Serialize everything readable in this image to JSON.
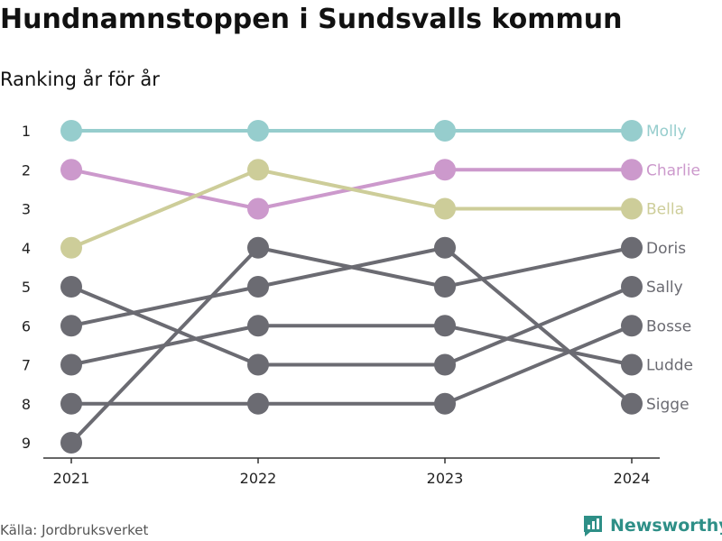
{
  "title": "Hundnamnstoppen i Sundsvalls kommun",
  "subtitle": "Ranking år för år",
  "source": "Källa: Jordbruksverket",
  "brand": "Newsworthy",
  "colors": {
    "Molly": "#96cdcd",
    "Charlie": "#cc99cc",
    "Bella": "#cdcd99",
    "other": "#6b6b72",
    "axis": "#333333",
    "brand": "#2e8f87"
  },
  "chart_data": {
    "type": "line",
    "x": [
      "2021",
      "2022",
      "2023",
      "2024"
    ],
    "y_ticks": [
      "1",
      "2",
      "3",
      "4",
      "5",
      "6",
      "7",
      "8",
      "9"
    ],
    "ylim": [
      1,
      9
    ],
    "y_reversed": true,
    "grid": false,
    "series": [
      {
        "name": "Molly",
        "values": [
          1,
          1,
          1,
          1
        ]
      },
      {
        "name": "Charlie",
        "values": [
          2,
          3,
          2,
          2
        ]
      },
      {
        "name": "Bella",
        "values": [
          4,
          2,
          3,
          3
        ]
      },
      {
        "name": "Doris",
        "values": [
          9,
          4,
          5,
          4
        ]
      },
      {
        "name": "Sally",
        "values": [
          5,
          7,
          7,
          5
        ]
      },
      {
        "name": "Bosse",
        "values": [
          8,
          8,
          8,
          6
        ]
      },
      {
        "name": "Ludde",
        "values": [
          7,
          6,
          6,
          7
        ]
      },
      {
        "name": "Sigge",
        "values": [
          6,
          5,
          4,
          8
        ]
      }
    ]
  }
}
